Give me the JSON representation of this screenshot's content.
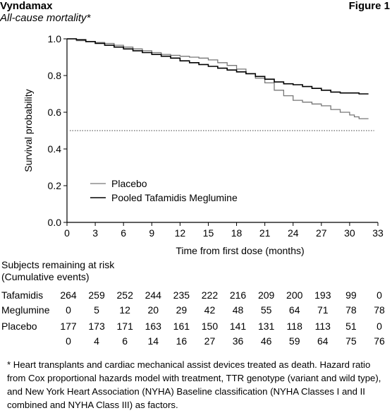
{
  "header": {
    "brand": "Vyndamax",
    "figure_label": "Figure 1",
    "subtitle": "All-cause mortality*"
  },
  "chart_data": {
    "type": "line",
    "subtype": "kaplan-meier",
    "xlabel": "Time from first dose (months)",
    "ylabel": "Survival probability",
    "xlim": [
      0,
      33
    ],
    "ylim": [
      0.0,
      1.0
    ],
    "xticks": [
      0,
      3,
      6,
      9,
      12,
      15,
      18,
      21,
      24,
      27,
      30,
      33
    ],
    "xtick_labels": [
      "0",
      "3",
      "6",
      "9",
      "12",
      "15",
      "18",
      "21",
      "24",
      "27",
      "30",
      "33"
    ],
    "yticks": [
      0.0,
      0.2,
      0.4,
      0.6,
      0.8,
      1.0
    ],
    "ytick_labels": [
      "0.0",
      "0.2",
      "0.4",
      "0.6",
      "0.8",
      "1.0"
    ],
    "reference_line_y": 0.5,
    "legend_position": "lower-left",
    "grid": false,
    "series": [
      {
        "name": "Placebo",
        "color": "#777777",
        "x": [
          0,
          1,
          2,
          3,
          4,
          5,
          6,
          7,
          8,
          9,
          10,
          11,
          12,
          13,
          14,
          15,
          16,
          17,
          18,
          19,
          20,
          21,
          22,
          23,
          24,
          25,
          26,
          27,
          28,
          29,
          30,
          30.5,
          31,
          32
        ],
        "y": [
          1.0,
          0.99,
          0.985,
          0.98,
          0.975,
          0.965,
          0.955,
          0.945,
          0.935,
          0.925,
          0.915,
          0.91,
          0.905,
          0.9,
          0.895,
          0.885,
          0.87,
          0.855,
          0.835,
          0.81,
          0.785,
          0.76,
          0.72,
          0.69,
          0.665,
          0.655,
          0.645,
          0.635,
          0.615,
          0.6,
          0.585,
          0.575,
          0.565,
          0.565
        ]
      },
      {
        "name": "Pooled Tafamidis Meglumine",
        "color": "#000000",
        "x": [
          0,
          1,
          2,
          3,
          4,
          5,
          6,
          7,
          8,
          9,
          10,
          11,
          12,
          13,
          14,
          15,
          16,
          17,
          18,
          19,
          20,
          21,
          22,
          23,
          24,
          25,
          26,
          27,
          28,
          29,
          30,
          31,
          32
        ],
        "y": [
          1.0,
          0.995,
          0.985,
          0.975,
          0.965,
          0.955,
          0.945,
          0.935,
          0.925,
          0.915,
          0.905,
          0.895,
          0.88,
          0.87,
          0.86,
          0.85,
          0.84,
          0.83,
          0.82,
          0.81,
          0.795,
          0.78,
          0.765,
          0.755,
          0.75,
          0.74,
          0.73,
          0.72,
          0.71,
          0.705,
          0.705,
          0.7,
          0.7
        ]
      }
    ]
  },
  "risk_table": {
    "title_line1": "Subjects remaining at risk",
    "title_line2": "(Cumulative events)",
    "months": [
      0,
      3,
      6,
      9,
      12,
      15,
      18,
      21,
      24,
      27,
      30,
      33
    ],
    "rows": [
      {
        "label": "Tafamidis",
        "values": [
          "264",
          "259",
          "252",
          "244",
          "235",
          "222",
          "216",
          "209",
          "200",
          "193",
          "99",
          "0"
        ]
      },
      {
        "label": "Meglumine",
        "values": [
          "0",
          "5",
          "12",
          "20",
          "29",
          "42",
          "48",
          "55",
          "64",
          "71",
          "78",
          "78"
        ]
      },
      {
        "label": "Placebo",
        "values": [
          "177",
          "173",
          "171",
          "163",
          "161",
          "150",
          "141",
          "131",
          "118",
          "113",
          "51",
          "0"
        ]
      },
      {
        "label": "",
        "values": [
          "0",
          "4",
          "6",
          "14",
          "16",
          "27",
          "36",
          "46",
          "59",
          "64",
          "75",
          "76"
        ]
      }
    ]
  },
  "footnote": "* Heart transplants and cardiac mechanical assist devices treated as death. Hazard ratio from Cox proportional hazards model with treatment, TTR genotype (variant and wild type), and New York Heart Association (NYHA) Baseline classification (NYHA Classes I and II combined and NYHA Class III) as factors."
}
